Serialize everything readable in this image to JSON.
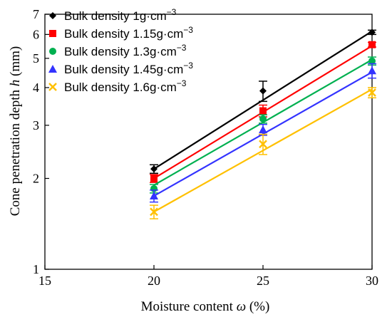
{
  "chart_data": {
    "type": "line",
    "xlabel_prefix": "Moisture content ",
    "xlabel_symbol": "ω",
    "xlabel_suffix": " (%)",
    "ylabel_prefix": "Cone penetration depth ",
    "ylabel_symbol": "h",
    "ylabel_suffix": " (mm)",
    "xlim": [
      15,
      30
    ],
    "ylim": [
      1,
      7
    ],
    "y_scale": "log",
    "x_ticks": [
      "15",
      "20",
      "25",
      "30"
    ],
    "y_ticks": [
      "1",
      "2",
      "3",
      "4",
      "5",
      "6",
      "7"
    ],
    "grid": false,
    "legend_position": "top-left",
    "legend_unit": "g·cm",
    "legend_exponent": "−3",
    "series": [
      {
        "name": "Bulk density 1g·cm−3",
        "label_prefix": "Bulk density 1",
        "color": "#000000",
        "marker": "diamond",
        "x": [
          20,
          25,
          30
        ],
        "y": [
          2.15,
          3.9,
          6.1
        ],
        "err": [
          0.07,
          0.3,
          0.1
        ],
        "fit_start": 2.15,
        "fit_end": 6.15
      },
      {
        "name": "Bulk density 1.15g·cm−3",
        "label_prefix": "Bulk density 1.15",
        "color": "#ff0000",
        "marker": "square",
        "x": [
          20,
          25,
          30
        ],
        "y": [
          2.0,
          3.35,
          5.55
        ],
        "err": [
          0.06,
          0.15,
          0.1
        ],
        "fit_start": 2.0,
        "fit_end": 5.5
      },
      {
        "name": "Bulk density 1.3g·cm−3",
        "label_prefix": "Bulk density 1.3",
        "color": "#00b050",
        "marker": "circle",
        "x": [
          20,
          25,
          30
        ],
        "y": [
          1.85,
          3.15,
          4.9
        ],
        "err": [
          0.06,
          0.1,
          0.15
        ],
        "fit_start": 1.9,
        "fit_end": 4.95
      },
      {
        "name": "Bulk density 1.45g·cm−3",
        "label_prefix": "Bulk density 1.45",
        "color": "#3333ff",
        "marker": "triangle",
        "x": [
          20,
          25,
          30
        ],
        "y": [
          1.75,
          2.9,
          4.55
        ],
        "err": [
          0.08,
          0.12,
          0.25
        ],
        "fit_start": 1.75,
        "fit_end": 4.5
      },
      {
        "name": "Bulk density 1.6g·cm−3",
        "label_prefix": "Bulk density 1.6",
        "color": "#ffc000",
        "marker": "x",
        "x": [
          20,
          25,
          30
        ],
        "y": [
          1.55,
          2.6,
          3.85
        ],
        "err": [
          0.08,
          0.2,
          0.15
        ],
        "fit_start": 1.55,
        "fit_end": 3.95
      }
    ]
  }
}
